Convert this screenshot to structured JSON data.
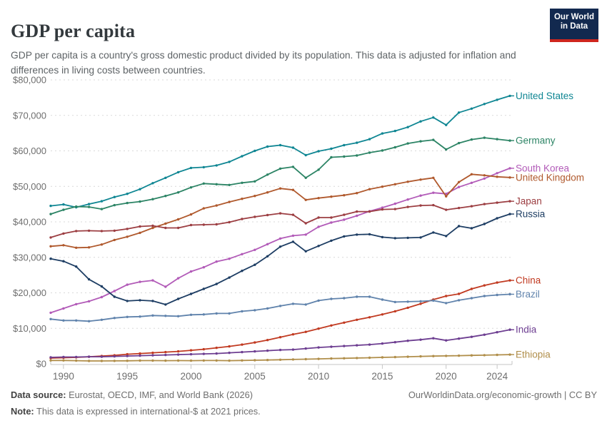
{
  "header": {
    "title": "GDP per capita",
    "subtitle": "GDP per capita is a country's gross domestic product divided by its population. This data is adjusted for inflation and differences in living costs between countries.",
    "logo": {
      "line1": "Our World",
      "line2": "in Data",
      "bg_color": "#12294F",
      "accent_color": "#CE261E"
    }
  },
  "footer": {
    "source_label": "Data source:",
    "source_text": " Eurostat, OECD, IMF, and World Bank (2026)",
    "note_label": "Note:",
    "note_text": " This data is expressed in international-$ at 2021 prices.",
    "link": "OurWorldinData.org/economic-growth",
    "separator": " | ",
    "license": "CC BY"
  },
  "chart_data": {
    "type": "line",
    "title": "GDP per capita",
    "ylabel": "",
    "xlabel": "",
    "units": "international-$ at 2021 prices",
    "grid": "dashed-horizontal",
    "legend_position": "right-end-labels",
    "xlim": [
      1989,
      2025
    ],
    "ylim": [
      0,
      80000
    ],
    "x_ticks": [
      1990,
      1995,
      2000,
      2005,
      2010,
      2015,
      2020,
      2024
    ],
    "y_ticks": [
      0,
      10000,
      20000,
      30000,
      40000,
      50000,
      60000,
      70000,
      80000
    ],
    "y_tick_labels": [
      "$0",
      "$10,000",
      "$20,000",
      "$30,000",
      "$40,000",
      "$50,000",
      "$60,000",
      "$70,000",
      "$80,000"
    ],
    "x": [
      1989,
      1990,
      1991,
      1992,
      1993,
      1994,
      1995,
      1996,
      1997,
      1998,
      1999,
      2000,
      2001,
      2002,
      2003,
      2004,
      2005,
      2006,
      2007,
      2008,
      2009,
      2010,
      2011,
      2012,
      2013,
      2014,
      2015,
      2016,
      2017,
      2018,
      2019,
      2020,
      2021,
      2022,
      2023,
      2024,
      2025
    ],
    "series": [
      {
        "name": "United States",
        "color": "#0F8693",
        "values": [
          44500,
          44900,
          44100,
          45000,
          45800,
          47000,
          47900,
          49200,
          50900,
          52400,
          54000,
          55200,
          55400,
          55900,
          56900,
          58500,
          60000,
          61200,
          61600,
          60900,
          58800,
          59900,
          60600,
          61600,
          62300,
          63300,
          64900,
          65600,
          66700,
          68300,
          69400,
          67300,
          70800,
          71900,
          73200,
          74400,
          75500
        ]
      },
      {
        "name": "Germany",
        "color": "#2C8465",
        "values": [
          42200,
          43400,
          44300,
          44200,
          43600,
          44700,
          45300,
          45700,
          46400,
          47300,
          48300,
          49700,
          50800,
          50600,
          50400,
          51000,
          51400,
          53300,
          55000,
          55500,
          52400,
          54700,
          58200,
          58400,
          58700,
          59500,
          60100,
          61000,
          62100,
          62700,
          63100,
          60400,
          62200,
          63200,
          63700,
          63300,
          62900
        ]
      },
      {
        "name": "South Korea",
        "color": "#B25BB8",
        "values": [
          14400,
          15600,
          16800,
          17600,
          18800,
          20500,
          22300,
          23100,
          23500,
          21700,
          24100,
          26000,
          27200,
          28800,
          29600,
          30900,
          32100,
          33700,
          35300,
          36100,
          36400,
          38600,
          39800,
          40600,
          41700,
          43000,
          44000,
          45100,
          46300,
          47400,
          48200,
          47900,
          49800,
          51000,
          52200,
          53700,
          55100
        ]
      },
      {
        "name": "United Kingdom",
        "color": "#B0592D",
        "values": [
          33100,
          33400,
          32700,
          32800,
          33600,
          34900,
          35800,
          36900,
          38300,
          39500,
          40700,
          42100,
          43800,
          44600,
          45600,
          46500,
          47300,
          48300,
          49400,
          49000,
          46200,
          46700,
          47100,
          47500,
          48100,
          49200,
          49900,
          50600,
          51300,
          51900,
          52400,
          47200,
          51200,
          53400,
          53100,
          52700,
          52500
        ]
      },
      {
        "name": "Japan",
        "color": "#9C3E42",
        "values": [
          35600,
          36700,
          37400,
          37500,
          37400,
          37500,
          38000,
          38700,
          38900,
          38300,
          38300,
          39100,
          39200,
          39300,
          39900,
          40800,
          41400,
          41900,
          42400,
          42000,
          39600,
          41200,
          41200,
          42000,
          42900,
          42900,
          43500,
          43600,
          44200,
          44600,
          44700,
          43400,
          43900,
          44400,
          45000,
          45400,
          45800
        ]
      },
      {
        "name": "Russia",
        "color": "#1D3D63",
        "values": [
          29600,
          28900,
          27400,
          23800,
          21800,
          18900,
          17700,
          17900,
          17700,
          16700,
          18300,
          19700,
          21100,
          22500,
          24300,
          26200,
          27900,
          30300,
          33000,
          34400,
          31700,
          33200,
          34700,
          35900,
          36400,
          36500,
          35700,
          35400,
          35500,
          35600,
          37000,
          36000,
          38800,
          38200,
          39400,
          41000,
          42200
        ]
      },
      {
        "name": "China",
        "color": "#C13A21",
        "values": [
          1600,
          1700,
          1800,
          2000,
          2200,
          2400,
          2700,
          2900,
          3100,
          3300,
          3500,
          3800,
          4100,
          4500,
          4900,
          5400,
          6000,
          6700,
          7500,
          8300,
          9000,
          9900,
          10800,
          11600,
          12400,
          13100,
          13900,
          14800,
          15800,
          16900,
          18100,
          19100,
          19700,
          21100,
          22100,
          22900,
          23500
        ]
      },
      {
        "name": "Brazil",
        "color": "#6083AC",
        "values": [
          12600,
          12200,
          12200,
          12000,
          12400,
          12900,
          13200,
          13300,
          13600,
          13500,
          13400,
          13800,
          13900,
          14200,
          14200,
          14800,
          15100,
          15600,
          16300,
          16900,
          16700,
          17800,
          18300,
          18500,
          18900,
          18900,
          18100,
          17400,
          17500,
          17600,
          17800,
          17100,
          17900,
          18500,
          19100,
          19400,
          19600
        ]
      },
      {
        "name": "India",
        "color": "#6D3E91",
        "values": [
          1800,
          1900,
          1900,
          2000,
          2000,
          2100,
          2200,
          2300,
          2400,
          2500,
          2600,
          2700,
          2800,
          2900,
          3100,
          3300,
          3500,
          3700,
          3900,
          4000,
          4300,
          4600,
          4800,
          5000,
          5200,
          5400,
          5700,
          6100,
          6500,
          6800,
          7200,
          6600,
          7100,
          7600,
          8200,
          8900,
          9600
        ]
      },
      {
        "name": "Ethiopia",
        "color": "#B08E4A",
        "values": [
          950,
          940,
          880,
          800,
          810,
          820,
          850,
          900,
          910,
          880,
          900,
          890,
          930,
          920,
          890,
          950,
          1000,
          1070,
          1150,
          1230,
          1310,
          1390,
          1480,
          1540,
          1620,
          1710,
          1800,
          1890,
          2000,
          2090,
          2170,
          2230,
          2300,
          2370,
          2440,
          2520,
          2600
        ]
      }
    ]
  },
  "style": {
    "gridline_color": "#D9D9D9",
    "axis_color": "#C6C6C6",
    "tick_label_color": "#6E6E6E"
  }
}
